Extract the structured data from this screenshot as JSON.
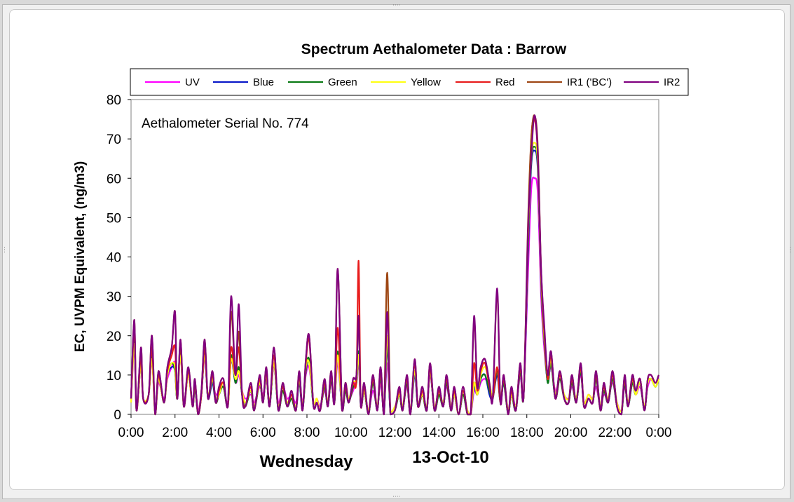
{
  "chart_data": {
    "type": "line",
    "title": "Spectrum Aethalometer Data  :  Barrow",
    "annotation": "Aethalometer  Serial No. 774",
    "ylabel": "EC, UVPM Equivalent, (ng/m3)",
    "xlabel_day": "Wednesday",
    "xlabel_date": "13-Oct-10",
    "ylim": [
      0,
      80
    ],
    "yticks": [
      "0",
      "10",
      "20",
      "30",
      "40",
      "50",
      "60",
      "70",
      "80"
    ],
    "xlim": [
      0,
      24
    ],
    "xticks": [
      "0:00",
      "2:00",
      "4:00",
      "6:00",
      "8:00",
      "10:00",
      "12:00",
      "14:00",
      "16:00",
      "18:00",
      "20:00",
      "22:00",
      "0:00"
    ],
    "grid": false,
    "legend_position": "top",
    "base_x": [
      0,
      0.15,
      0.25,
      0.45,
      0.55,
      0.8,
      0.95,
      1.1,
      1.25,
      1.5,
      1.65,
      1.85,
      2.0,
      2.1,
      2.25,
      2.4,
      2.6,
      2.8,
      2.9,
      3.05,
      3.2,
      3.35,
      3.5,
      3.7,
      3.85,
      4.0,
      4.2,
      4.4,
      4.55,
      4.75,
      4.9,
      5.05,
      5.2,
      5.45,
      5.6,
      5.85,
      6.0,
      6.15,
      6.3,
      6.5,
      6.7,
      6.9,
      7.1,
      7.3,
      7.5,
      7.65,
      7.8,
      7.95,
      8.1,
      8.3,
      8.45,
      8.6,
      8.8,
      8.95,
      9.1,
      9.25,
      9.4,
      9.6,
      9.75,
      9.9,
      10.1,
      10.25,
      10.35,
      10.45,
      10.6,
      10.8,
      11.0,
      11.2,
      11.35,
      11.5,
      11.65,
      11.8,
      12.0,
      12.2,
      12.35,
      12.55,
      12.7,
      12.9,
      13.05,
      13.25,
      13.45,
      13.6,
      13.8,
      14.0,
      14.2,
      14.35,
      14.55,
      14.7,
      14.9,
      15.1,
      15.3,
      15.45,
      15.6,
      15.75,
      15.9,
      16.1,
      16.3,
      16.45,
      16.65,
      16.8,
      16.95,
      17.15,
      17.3,
      17.5,
      17.7,
      17.85,
      18.05,
      18.2,
      18.35,
      18.5,
      18.65,
      18.8,
      18.95,
      19.1,
      19.3,
      19.5,
      19.7,
      19.9,
      20.05,
      20.25,
      20.45,
      20.6,
      20.8,
      21.0,
      21.15,
      21.35,
      21.5,
      21.7,
      21.9,
      22.1,
      22.3,
      22.45,
      22.6,
      22.8,
      22.95,
      23.15,
      23.35,
      23.5,
      23.65,
      23.85,
      24.0
    ],
    "series": [
      {
        "name": "UV",
        "color": "#ff00ff",
        "values": [
          3,
          17,
          1,
          13,
          4,
          5,
          14,
          1,
          8,
          4,
          9,
          12,
          13,
          5,
          15,
          3,
          10,
          3,
          8,
          1,
          6,
          14,
          5,
          8,
          5,
          6,
          7,
          3,
          14,
          8,
          10,
          6,
          4,
          5,
          3,
          7,
          5,
          9,
          3,
          12,
          3,
          7,
          4,
          5,
          3,
          8,
          3,
          10,
          12,
          3,
          4,
          2,
          6,
          3,
          8,
          4,
          13,
          2,
          7,
          4,
          6,
          9,
          13,
          3,
          6,
          1,
          6,
          2,
          8,
          1,
          13,
          1,
          2,
          5,
          2,
          7,
          1,
          10,
          3,
          5,
          2,
          10,
          2,
          5,
          3,
          7,
          2,
          5,
          0,
          5,
          1,
          0,
          6,
          5,
          8,
          9,
          7,
          5,
          10,
          4,
          8,
          1,
          6,
          2,
          10,
          5,
          35,
          57,
          60,
          56,
          30,
          16,
          9,
          12,
          6,
          9,
          5,
          4,
          7,
          4,
          10,
          3,
          5,
          4,
          7,
          2,
          5,
          4,
          8,
          3,
          1,
          7,
          3,
          8,
          5,
          7,
          2,
          7,
          9,
          8,
          9
        ]
      },
      {
        "name": "Blue",
        "color": "#0a19c8",
        "values": [
          4,
          18,
          1,
          13,
          4,
          5,
          15,
          0,
          9,
          3,
          10,
          12,
          11,
          4,
          16,
          2,
          10,
          2,
          7,
          0,
          5,
          15,
          4,
          8,
          3,
          5,
          7,
          2,
          14,
          8,
          12,
          5,
          2,
          6,
          1,
          8,
          3,
          10,
          2,
          13,
          1,
          6,
          2,
          4,
          1,
          8,
          1,
          11,
          13,
          2,
          3,
          1,
          7,
          2,
          9,
          3,
          15,
          1,
          6,
          3,
          7,
          8,
          15,
          2,
          6,
          0,
          8,
          1,
          10,
          0,
          17,
          0,
          1,
          5,
          1,
          8,
          0,
          10,
          2,
          5,
          1,
          11,
          1,
          5,
          2,
          8,
          1,
          5,
          0,
          5,
          0,
          0,
          7,
          5,
          9,
          10,
          5,
          4,
          10,
          3,
          8,
          0,
          5,
          1,
          11,
          4,
          40,
          63,
          67,
          62,
          33,
          18,
          8,
          13,
          4,
          9,
          4,
          3,
          8,
          3,
          11,
          2,
          4,
          3,
          9,
          1,
          6,
          3,
          9,
          2,
          0,
          8,
          2,
          8,
          5,
          8,
          1,
          8,
          9,
          7,
          9
        ]
      },
      {
        "name": "Green",
        "color": "#0a7a14",
        "values": [
          4,
          19,
          1,
          14,
          4,
          5,
          15,
          0,
          9,
          3,
          10,
          13,
          11,
          4,
          16,
          2,
          11,
          2,
          7,
          0,
          5,
          16,
          4,
          9,
          3,
          5,
          7,
          2,
          15,
          8,
          12,
          5,
          2,
          6,
          1,
          8,
          3,
          10,
          2,
          13,
          1,
          6,
          2,
          4,
          1,
          9,
          1,
          11,
          14,
          2,
          3,
          1,
          7,
          2,
          9,
          3,
          16,
          1,
          6,
          3,
          7,
          8,
          16,
          2,
          6,
          0,
          8,
          1,
          10,
          0,
          18,
          0,
          1,
          5,
          1,
          8,
          0,
          11,
          2,
          5,
          1,
          11,
          1,
          5,
          2,
          8,
          1,
          5,
          0,
          5,
          0,
          0,
          8,
          5,
          9,
          10,
          6,
          4,
          11,
          3,
          8,
          0,
          5,
          1,
          11,
          4,
          42,
          64,
          68,
          63,
          34,
          18,
          8,
          13,
          4,
          9,
          4,
          3,
          8,
          3,
          11,
          2,
          4,
          3,
          9,
          1,
          6,
          3,
          9,
          2,
          0,
          8,
          2,
          8,
          5,
          8,
          1,
          8,
          9,
          7,
          9
        ]
      },
      {
        "name": "Yellow",
        "color": "#ffff14",
        "values": [
          3,
          18,
          1,
          13,
          4,
          5,
          14,
          0,
          9,
          3,
          10,
          13,
          12,
          4,
          15,
          2,
          10,
          2,
          8,
          0,
          6,
          15,
          5,
          9,
          4,
          5,
          8,
          2,
          14,
          9,
          11,
          6,
          3,
          6,
          2,
          8,
          4,
          10,
          3,
          13,
          2,
          7,
          3,
          5,
          2,
          9,
          2,
          12,
          13,
          3,
          4,
          1,
          8,
          3,
          10,
          4,
          15,
          2,
          8,
          4,
          8,
          9,
          15,
          3,
          6,
          1,
          9,
          2,
          11,
          1,
          20,
          1,
          2,
          5,
          2,
          9,
          1,
          11,
          3,
          5,
          2,
          11,
          2,
          6,
          3,
          9,
          2,
          5,
          0,
          6,
          1,
          0,
          8,
          5,
          10,
          12,
          8,
          5,
          12,
          4,
          9,
          1,
          5,
          2,
          12,
          5,
          44,
          65,
          69,
          64,
          35,
          19,
          9,
          14,
          5,
          10,
          5,
          4,
          9,
          4,
          12,
          3,
          5,
          4,
          10,
          2,
          7,
          4,
          10,
          3,
          1,
          9,
          3,
          9,
          5,
          8,
          2,
          8,
          9,
          7,
          9
        ]
      },
      {
        "name": "Red",
        "color": "#e81c1c",
        "values": [
          4,
          22,
          1,
          15,
          4,
          5,
          17,
          0,
          10,
          3,
          11,
          15,
          17,
          4,
          18,
          2,
          11,
          2,
          8,
          0,
          5,
          17,
          4,
          10,
          3,
          6,
          8,
          2,
          17,
          10,
          17,
          5,
          2,
          7,
          1,
          9,
          3,
          11,
          2,
          15,
          1,
          7,
          2,
          5,
          1,
          10,
          1,
          13,
          19,
          2,
          3,
          1,
          8,
          2,
          10,
          3,
          22,
          1,
          7,
          3,
          8,
          9,
          39,
          2,
          7,
          0,
          9,
          1,
          11,
          0,
          26,
          0,
          1,
          6,
          1,
          9,
          0,
          13,
          2,
          6,
          1,
          12,
          1,
          6,
          2,
          9,
          1,
          6,
          0,
          6,
          0,
          0,
          13,
          6,
          11,
          13,
          7,
          4,
          12,
          3,
          9,
          0,
          6,
          1,
          12,
          4,
          45,
          70,
          75,
          66,
          36,
          20,
          9,
          15,
          4,
          10,
          4,
          3,
          9,
          3,
          12,
          2,
          4,
          3,
          10,
          1,
          7,
          3,
          10,
          2,
          0,
          9,
          2,
          9,
          6,
          9,
          1,
          9,
          10,
          8,
          10
        ]
      },
      {
        "name": "IR1 ('BC')",
        "color": "#9e4714",
        "values": [
          4,
          24,
          1,
          17,
          4,
          5,
          20,
          0,
          11,
          3,
          12,
          17,
          26,
          4,
          19,
          2,
          12,
          2,
          9,
          0,
          6,
          19,
          4,
          11,
          3,
          7,
          9,
          2,
          26,
          10,
          21,
          5,
          2,
          8,
          1,
          10,
          3,
          12,
          2,
          17,
          1,
          8,
          2,
          6,
          1,
          11,
          1,
          14,
          20,
          2,
          3,
          1,
          9,
          2,
          11,
          3,
          37,
          1,
          8,
          3,
          9,
          10,
          25,
          2,
          8,
          0,
          10,
          1,
          12,
          0,
          36,
          0,
          1,
          7,
          1,
          10,
          0,
          14,
          2,
          7,
          1,
          13,
          1,
          7,
          2,
          10,
          1,
          7,
          0,
          7,
          0,
          0,
          24,
          7,
          12,
          14,
          8,
          4,
          31,
          3,
          10,
          0,
          7,
          1,
          13,
          4,
          48,
          70,
          76,
          68,
          37,
          21,
          10,
          16,
          4,
          11,
          4,
          3,
          10,
          3,
          13,
          2,
          4,
          3,
          11,
          1,
          8,
          3,
          11,
          2,
          0,
          10,
          2,
          10,
          6,
          9,
          1,
          9,
          10,
          8,
          10
        ]
      },
      {
        "name": "IR2",
        "color": "#800080",
        "values": [
          4,
          24,
          1,
          17,
          4,
          5,
          20,
          0,
          11,
          3,
          12,
          17,
          26,
          4,
          19,
          2,
          12,
          2,
          9,
          0,
          6,
          19,
          4,
          11,
          3,
          7,
          9,
          2,
          30,
          10,
          28,
          5,
          2,
          8,
          1,
          10,
          3,
          12,
          2,
          17,
          1,
          8,
          2,
          6,
          1,
          11,
          1,
          14,
          20,
          2,
          3,
          1,
          9,
          2,
          11,
          3,
          37,
          1,
          8,
          3,
          9,
          10,
          25,
          2,
          8,
          0,
          10,
          1,
          12,
          0,
          26,
          0,
          1,
          7,
          1,
          10,
          0,
          14,
          2,
          7,
          1,
          13,
          1,
          7,
          2,
          10,
          1,
          7,
          0,
          7,
          0,
          0,
          25,
          7,
          12,
          14,
          8,
          4,
          32,
          3,
          10,
          0,
          7,
          1,
          13,
          4,
          46,
          65,
          76,
          66,
          37,
          22,
          10,
          16,
          4,
          11,
          4,
          3,
          10,
          3,
          13,
          2,
          4,
          3,
          11,
          1,
          8,
          3,
          11,
          2,
          0,
          10,
          2,
          10,
          6,
          9,
          1,
          9,
          10,
          8,
          10
        ]
      }
    ]
  }
}
